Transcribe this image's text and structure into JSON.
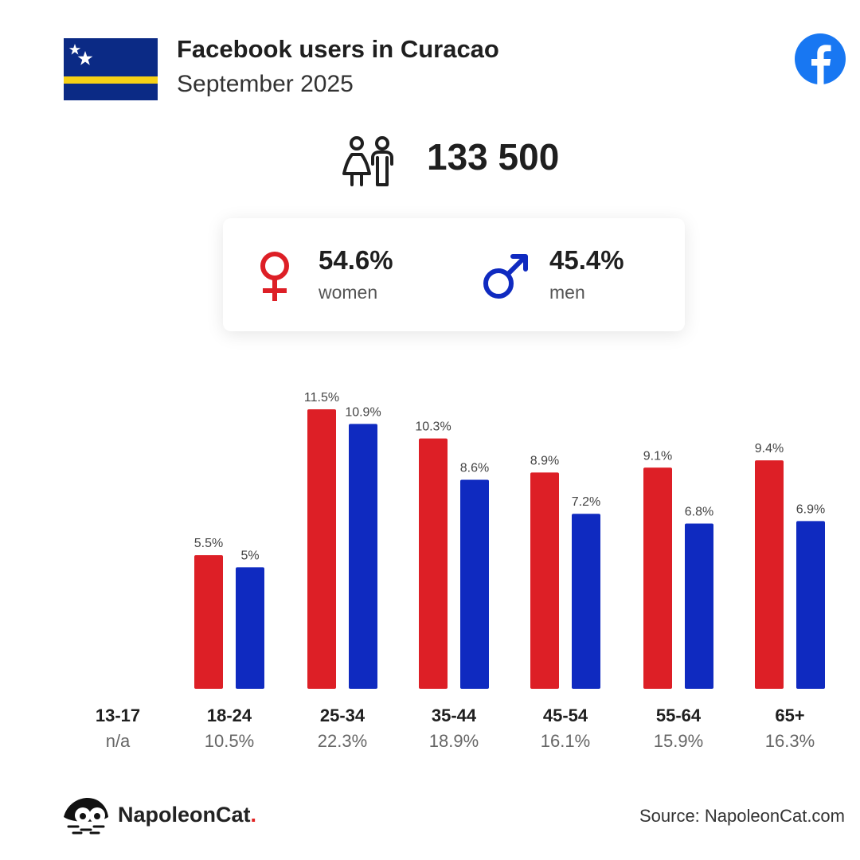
{
  "header": {
    "title": "Facebook users in Curacao",
    "subtitle": "September 2025"
  },
  "total_users": "133 500",
  "gender": {
    "women": {
      "pct": "54.6%",
      "label": "women"
    },
    "men": {
      "pct": "45.4%",
      "label": "men"
    }
  },
  "icons": {
    "flag": "curacao-flag-icon",
    "platform": "facebook-icon",
    "people": "people-icon",
    "female": "female-symbol-icon",
    "male": "male-symbol-icon",
    "brand": "napoleoncat-logo-icon"
  },
  "colors": {
    "women": "#dd1f26",
    "men": "#0f2ac0",
    "flag_blue": "#0b2a85",
    "flag_yellow": "#f7d116",
    "facebook": "#1877f2"
  },
  "chart_data": {
    "type": "bar",
    "categories": [
      "13-17",
      "18-24",
      "25-34",
      "35-44",
      "45-54",
      "55-64",
      "65+"
    ],
    "category_totals": [
      "n/a",
      "10.5%",
      "22.3%",
      "18.9%",
      "16.1%",
      "15.9%",
      "16.3%"
    ],
    "series": [
      {
        "name": "women",
        "values": [
          null,
          5.5,
          11.5,
          10.3,
          8.9,
          9.1,
          9.4
        ],
        "labels": [
          "",
          "5.5%",
          "11.5%",
          "10.3%",
          "8.9%",
          "9.1%",
          "9.4%"
        ]
      },
      {
        "name": "men",
        "values": [
          null,
          5,
          10.9,
          8.6,
          7.2,
          6.8,
          6.9
        ],
        "labels": [
          "",
          "5%",
          "10.9%",
          "8.6%",
          "7.2%",
          "6.8%",
          "6.9%"
        ]
      }
    ],
    "ylim": [
      0,
      11.5
    ],
    "grid": false
  },
  "footer": {
    "brand_name": "NapoleonCat",
    "brand_dot": ".",
    "source": "Source: NapoleonCat.com"
  }
}
